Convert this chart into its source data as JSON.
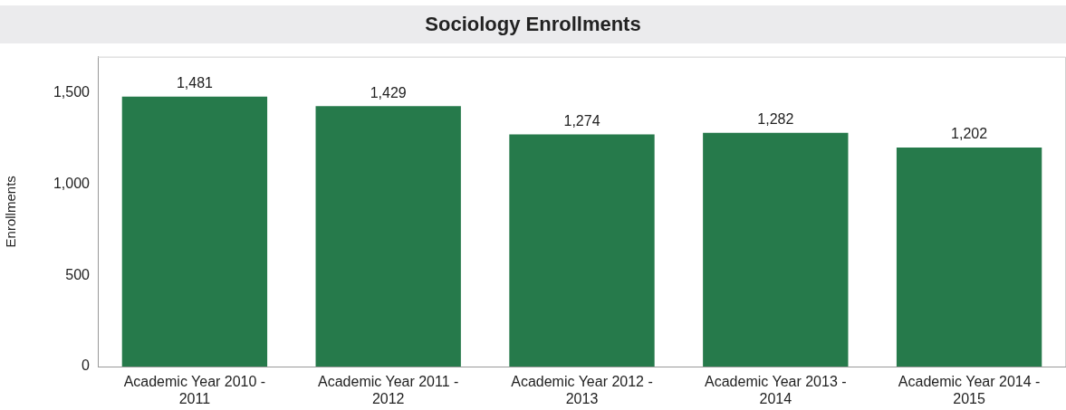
{
  "chart_data": {
    "type": "bar",
    "title": "Sociology Enrollments",
    "ylabel": "Enrollments",
    "categories": [
      "Academic Year 2010 - 2011",
      "Academic Year 2011 - 2012",
      "Academic Year 2012 - 2013",
      "Academic Year 2013 - 2014",
      "Academic Year 2014 - 2015"
    ],
    "values": [
      1481,
      1429,
      1274,
      1282,
      1202
    ],
    "value_labels": [
      "1,481",
      "1,429",
      "1,274",
      "1,282",
      "1,202"
    ],
    "color": "#267a4b",
    "ylim": [
      0,
      1700
    ],
    "yticks": [
      0,
      500,
      {
        "value": 1000,
        "label": "1,000"
      },
      {
        "value": 1500,
        "label": "1,500"
      }
    ],
    "grid": false
  }
}
